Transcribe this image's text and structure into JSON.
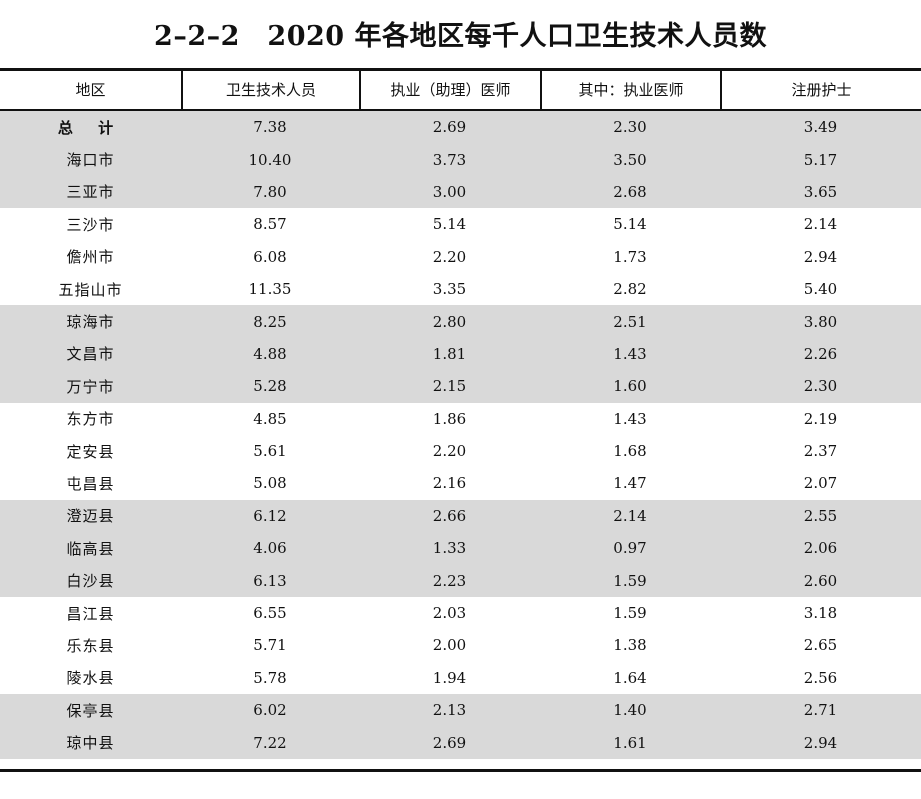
{
  "title": "2–2–2　2020 年各地区每千人口卫生技术人员数",
  "columns": [
    "地区",
    "卫生技术人员",
    "执业（助理）医师",
    "其中：执业医师",
    "注册护士"
  ],
  "groups": [
    {
      "shaded": true,
      "rows": [
        [
          "总 计",
          "7.38",
          "2.69",
          "2.30",
          "3.49"
        ],
        [
          "海口市",
          "10.40",
          "3.73",
          "3.50",
          "5.17"
        ],
        [
          "三亚市",
          "7.80",
          "3.00",
          "2.68",
          "3.65"
        ]
      ]
    },
    {
      "shaded": false,
      "rows": [
        [
          "三沙市",
          "8.57",
          "5.14",
          "5.14",
          "2.14"
        ],
        [
          "儋州市",
          "6.08",
          "2.20",
          "1.73",
          "2.94"
        ],
        [
          "五指山市",
          "11.35",
          "3.35",
          "2.82",
          "5.40"
        ]
      ]
    },
    {
      "shaded": true,
      "rows": [
        [
          "琼海市",
          "8.25",
          "2.80",
          "2.51",
          "3.80"
        ],
        [
          "文昌市",
          "4.88",
          "1.81",
          "1.43",
          "2.26"
        ],
        [
          "万宁市",
          "5.28",
          "2.15",
          "1.60",
          "2.30"
        ]
      ]
    },
    {
      "shaded": false,
      "rows": [
        [
          "东方市",
          "4.85",
          "1.86",
          "1.43",
          "2.19"
        ],
        [
          "定安县",
          "5.61",
          "2.20",
          "1.68",
          "2.37"
        ],
        [
          "屯昌县",
          "5.08",
          "2.16",
          "1.47",
          "2.07"
        ]
      ]
    },
    {
      "shaded": true,
      "rows": [
        [
          "澄迈县",
          "6.12",
          "2.66",
          "2.14",
          "2.55"
        ],
        [
          "临高县",
          "4.06",
          "1.33",
          "0.97",
          "2.06"
        ],
        [
          "白沙县",
          "6.13",
          "2.23",
          "1.59",
          "2.60"
        ]
      ]
    },
    {
      "shaded": false,
      "rows": [
        [
          "昌江县",
          "6.55",
          "2.03",
          "1.59",
          "3.18"
        ],
        [
          "乐东县",
          "5.71",
          "2.00",
          "1.38",
          "2.65"
        ],
        [
          "陵水县",
          "5.78",
          "1.94",
          "1.64",
          "2.56"
        ]
      ]
    },
    {
      "shaded": true,
      "rows": [
        [
          "保亭县",
          "6.02",
          "2.13",
          "1.40",
          "2.71"
        ],
        [
          "琼中县",
          "7.22",
          "2.69",
          "1.61",
          "2.94"
        ]
      ]
    }
  ]
}
